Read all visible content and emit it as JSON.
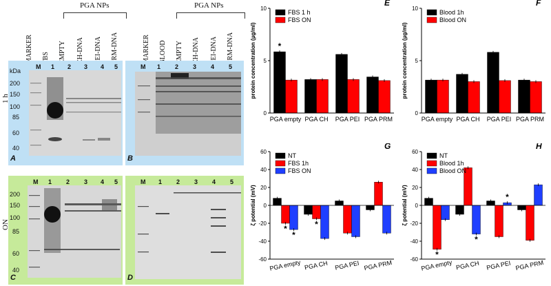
{
  "gels": {
    "group_label": "PGA NPs",
    "left_top_headers": [
      "MARKER",
      "FBS",
      "EMPTY",
      "CH-DNA",
      "PEI-DNA",
      "PRM-DNA"
    ],
    "right_top_headers": [
      "MARKER",
      "BLOOD",
      "EMPTY",
      "CH-DNA",
      "PEI-DNA",
      "PRM-DNA"
    ],
    "lane_numbers": [
      "M",
      "1",
      "2",
      "3",
      "4",
      "5"
    ],
    "kda_label": "kDa",
    "markers_top": [
      "200",
      "150",
      "100",
      "85",
      "60",
      "40"
    ],
    "markers_bottom": [
      "200",
      "150",
      "100",
      "85",
      "60",
      "40"
    ],
    "row_label_top": "1 h",
    "row_label_bottom": "ON",
    "panels": [
      "A",
      "B",
      "C",
      "D"
    ],
    "colors": {
      "top_bg": "#bfe0f5",
      "bottom_bg": "#c6ea9a"
    }
  },
  "chart_data": [
    {
      "panel": "E",
      "type": "bar",
      "categories": [
        "PGA empty",
        "PGA CH",
        "PGA PEI",
        "PGA PRM"
      ],
      "series": [
        {
          "name": "FBS 1 h",
          "color": "#000000",
          "values": [
            5.85,
            3.2,
            5.6,
            3.45
          ]
        },
        {
          "name": "FBS ON",
          "color": "#ff0000",
          "values": [
            3.15,
            3.2,
            3.2,
            3.1
          ]
        }
      ],
      "ylabel": "protein concentration (µg/ml)",
      "ylim": [
        0,
        10
      ],
      "yticks": [
        "0",
        "5",
        "10"
      ],
      "annotations": [
        "*"
      ],
      "legend": "top-left"
    },
    {
      "panel": "F",
      "type": "bar",
      "categories": [
        "PGA empty",
        "PGA CH",
        "PGA PEI",
        "PGA PRM"
      ],
      "series": [
        {
          "name": "Blood 1h",
          "color": "#000000",
          "values": [
            3.15,
            3.7,
            5.8,
            3.15
          ]
        },
        {
          "name": "Blood ON",
          "color": "#ff0000",
          "values": [
            3.15,
            3.0,
            3.1,
            3.0
          ]
        }
      ],
      "ylabel": "protein concentration (µg/ml)",
      "ylim": [
        0,
        10
      ],
      "yticks": [
        "0",
        "5",
        "10"
      ],
      "legend": "top-left"
    },
    {
      "panel": "G",
      "type": "bar",
      "categories": [
        "PGA empty",
        "PGA CH",
        "PGA PEI",
        "PGA PRM"
      ],
      "series": [
        {
          "name": "NT",
          "color": "#000000",
          "values": [
            8,
            -10,
            5,
            -5
          ]
        },
        {
          "name": "FBS 1h",
          "color": "#ff0000",
          "values": [
            -20,
            -15,
            -31,
            26
          ]
        },
        {
          "name": "FBS ON",
          "color": "#1f3fff",
          "values": [
            -27,
            -37,
            -35,
            -31
          ]
        }
      ],
      "ylabel": "ζ potential (mV)",
      "ylim": [
        -60,
        60
      ],
      "yticks": [
        "-60",
        "-40",
        "-20",
        "0",
        "20",
        "40",
        "60"
      ],
      "annotations": [
        "*",
        "*",
        "*"
      ],
      "legend": "top-left"
    },
    {
      "panel": "H",
      "type": "bar",
      "categories": [
        "PGA empty",
        "PGA CH",
        "PGA PEI",
        "PGA PRM"
      ],
      "series": [
        {
          "name": "NT",
          "color": "#000000",
          "values": [
            8,
            -10,
            5,
            -5
          ]
        },
        {
          "name": "Blood 1h",
          "color": "#ff0000",
          "values": [
            -49,
            42,
            -35,
            -39
          ]
        },
        {
          "name": "Blood ON",
          "color": "#1f3fff",
          "values": [
            -16,
            -32,
            3,
            23
          ]
        }
      ],
      "ylabel": "ζ potential (mV)",
      "ylim": [
        -60,
        60
      ],
      "yticks": [
        "-60",
        "-40",
        "-20",
        "0",
        "20",
        "40",
        "60"
      ],
      "annotations": [
        "*",
        "*",
        "*"
      ],
      "legend": "top-left"
    }
  ]
}
